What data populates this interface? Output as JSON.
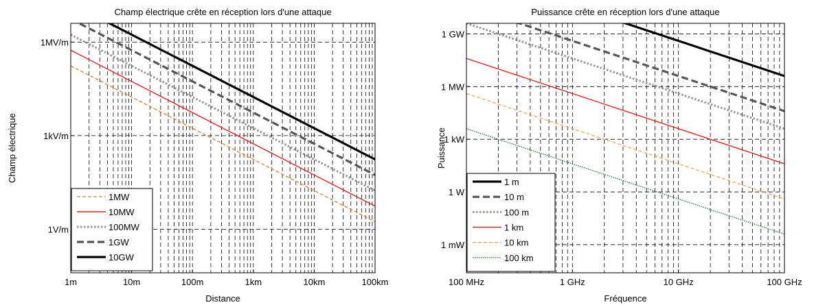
{
  "chart_data": [
    {
      "type": "line",
      "title": "Champ électrique crête en réception lors d'une attaque",
      "xlabel": "Distance",
      "ylabel": "Champ électrique",
      "x_scale": "log",
      "y_scale": "log",
      "xlim": [
        1,
        100000
      ],
      "ylim": [
        0.04,
        4000000
      ],
      "x_ticks": [
        1,
        10,
        100,
        1000,
        10000,
        100000
      ],
      "x_tick_labels": [
        "1m",
        "10m",
        "100m",
        "1km",
        "10km",
        "100km"
      ],
      "y_ticks": [
        1,
        1000,
        1000000
      ],
      "y_tick_labels": [
        "1V/m",
        "1kV/m",
        "1MV/m"
      ],
      "grid": true,
      "legend_position": "bottom-left",
      "series": [
        {
          "name": "1MW",
          "x": [
            1,
            100000
          ],
          "y": [
            173000,
            1.73
          ],
          "color": "#e07b1f",
          "style": "dashed-thin"
        },
        {
          "name": "10MW",
          "x": [
            1,
            100000
          ],
          "y": [
            548000,
            5.48
          ],
          "color": "#e8221b",
          "style": "solid"
        },
        {
          "name": "100MW",
          "x": [
            1,
            100000
          ],
          "y": [
            1730000,
            17.3
          ],
          "color": "#999999",
          "style": "dotted"
        },
        {
          "name": "1GW",
          "x": [
            1,
            100000
          ],
          "y": [
            5480000,
            54.8
          ],
          "color": "#555555",
          "style": "dashed"
        },
        {
          "name": "10GW",
          "x": [
            1,
            100000
          ],
          "y": [
            17300000,
            173
          ],
          "color": "#000000",
          "style": "solid-thick"
        }
      ]
    },
    {
      "type": "line",
      "title": "Puissance crête en réception lors d'une attaque",
      "xlabel": "Fréquence",
      "ylabel": "Puissance",
      "x_scale": "log",
      "y_scale": "log",
      "xlim": [
        100000000,
        100000000000
      ],
      "ylim": [
        2.5e-05,
        4000000000
      ],
      "x_ticks": [
        100000000,
        1000000000,
        10000000000,
        100000000000
      ],
      "x_tick_labels": [
        "100 MHz",
        "1 GHz",
        "10 GHz",
        "100 GHz"
      ],
      "y_ticks": [
        0.001,
        1,
        1000,
        1000000,
        1000000000
      ],
      "y_tick_labels": [
        "1 mW",
        "1 W",
        "1 kW",
        "1 MW",
        "1 GW"
      ],
      "grid": true,
      "legend_position": "bottom-left",
      "series": [
        {
          "name": "1 m",
          "x": [
            100000000,
            100000000000
          ],
          "y": [
            4000000000000,
            4000000
          ],
          "color": "#000000",
          "style": "solid-thick"
        },
        {
          "name": "10 m",
          "x": [
            100000000,
            100000000000
          ],
          "y": [
            40000000000,
            40000
          ],
          "color": "#555555",
          "style": "dashed"
        },
        {
          "name": "100 m",
          "x": [
            100000000,
            100000000000
          ],
          "y": [
            4000000000,
            4000
          ],
          "color": "#999999",
          "style": "dotted"
        },
        {
          "name": "1 km",
          "x": [
            100000000,
            100000000000
          ],
          "y": [
            40000000,
            40
          ],
          "color": "#e8221b",
          "style": "solid"
        },
        {
          "name": "10 km",
          "x": [
            100000000,
            100000000000
          ],
          "y": [
            400000,
            0.4
          ],
          "color": "#f5a54a",
          "style": "dashed-thin"
        },
        {
          "name": "100 km",
          "x": [
            100000000,
            100000000000
          ],
          "y": [
            4000,
            0.004
          ],
          "color": "#1a7a2c",
          "style": "dotted-thin"
        }
      ]
    }
  ]
}
